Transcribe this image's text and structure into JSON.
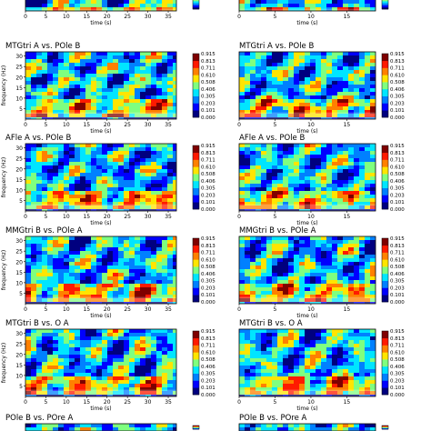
{
  "colorbar": {
    "ticks": [
      "0.915",
      "0.813",
      "0.711",
      "0.610",
      "0.508",
      "0.406",
      "0.305",
      "0.203",
      "0.101",
      "0.000"
    ],
    "colors": [
      "#00007f",
      "#0000ff",
      "#0080ff",
      "#00e5ff",
      "#7fff7f",
      "#ffe500",
      "#ff8000",
      "#ff1a00",
      "#7f0000"
    ]
  },
  "chart_data": [
    {
      "type": "heatmap",
      "panel": "top-left (partial)",
      "title": "",
      "xlabel": "time (s)",
      "xticks": [
        "0",
        "5",
        "10",
        "15",
        "20",
        "25",
        "30",
        "35"
      ],
      "ylabel": "",
      "yticks": [],
      "zlim": [
        0,
        0.915
      ]
    },
    {
      "type": "heatmap",
      "panel": "top-right (partial)",
      "title": "",
      "xlabel": "time (s)",
      "xticks": [
        "0",
        "5",
        "10",
        "15"
      ],
      "ylabel": "",
      "yticks": [],
      "zlim": [
        0,
        0.915
      ]
    },
    {
      "type": "heatmap",
      "title": "MTGtri A vs. POle B",
      "xlabel": "time (s)",
      "xticks": [
        "0",
        "5",
        "10",
        "15",
        "20",
        "25",
        "30",
        "35"
      ],
      "ylabel": "frequency (Hz)",
      "yticks": [
        "30",
        "25",
        "20",
        "15",
        "10",
        "5"
      ],
      "zlim": [
        0,
        0.915
      ]
    },
    {
      "type": "heatmap",
      "title": "MTGtri A vs. POle B",
      "xlabel": "time (s)",
      "xticks": [
        "0",
        "5",
        "10",
        "15"
      ],
      "ylabel": "",
      "yticks": [],
      "zlim": [
        0,
        0.915
      ]
    },
    {
      "type": "heatmap",
      "title": "AFle A vs. POle B",
      "xlabel": "time (s)",
      "xticks": [
        "0",
        "5",
        "10",
        "15",
        "20",
        "25",
        "30",
        "35"
      ],
      "ylabel": "frequency (Hz)",
      "yticks": [
        "30",
        "25",
        "20",
        "15",
        "10",
        "5"
      ],
      "zlim": [
        0,
        0.915
      ]
    },
    {
      "type": "heatmap",
      "title": "AFle A vs. POle B",
      "xlabel": "time (s)",
      "xticks": [
        "0",
        "5",
        "10",
        "15"
      ],
      "ylabel": "",
      "yticks": [],
      "zlim": [
        0,
        0.915
      ]
    },
    {
      "type": "heatmap",
      "title": "MMGtri B vs. POle A",
      "xlabel": "time (s)",
      "xticks": [
        "0",
        "5",
        "10",
        "15",
        "20",
        "25",
        "30",
        "35"
      ],
      "ylabel": "frequency (Hz)",
      "yticks": [
        "30",
        "25",
        "20",
        "15",
        "10",
        "5"
      ],
      "zlim": [
        0,
        0.915
      ]
    },
    {
      "type": "heatmap",
      "title": "MMGtri B vs. POle A",
      "xlabel": "time (s)",
      "xticks": [
        "0",
        "5",
        "10",
        "15"
      ],
      "ylabel": "",
      "yticks": [],
      "zlim": [
        0,
        0.915
      ]
    },
    {
      "type": "heatmap",
      "title": "MTGtri B vs. O A",
      "xlabel": "time (s)",
      "xticks": [
        "0",
        "5",
        "10",
        "15",
        "20",
        "25",
        "30",
        "35"
      ],
      "ylabel": "frequency (Hz)",
      "yticks": [
        "30",
        "25",
        "20",
        "15",
        "10",
        "5"
      ],
      "zlim": [
        0,
        0.915
      ]
    },
    {
      "type": "heatmap",
      "title": "MTGtri B vs. O A",
      "xlabel": "time (s)",
      "xticks": [
        "0",
        "5",
        "10",
        "15"
      ],
      "ylabel": "",
      "yticks": [],
      "zlim": [
        0,
        0.915
      ]
    },
    {
      "type": "heatmap",
      "title": "POle B vs. POre A",
      "xlabel": "",
      "xticks": [],
      "ylabel": "",
      "yticks": [],
      "zlim": [
        0,
        0.915
      ]
    },
    {
      "type": "heatmap",
      "title": "POle B vs. POre A",
      "xlabel": "",
      "xticks": [],
      "ylabel": "",
      "yticks": [],
      "zlim": [
        0,
        0.915
      ]
    }
  ]
}
